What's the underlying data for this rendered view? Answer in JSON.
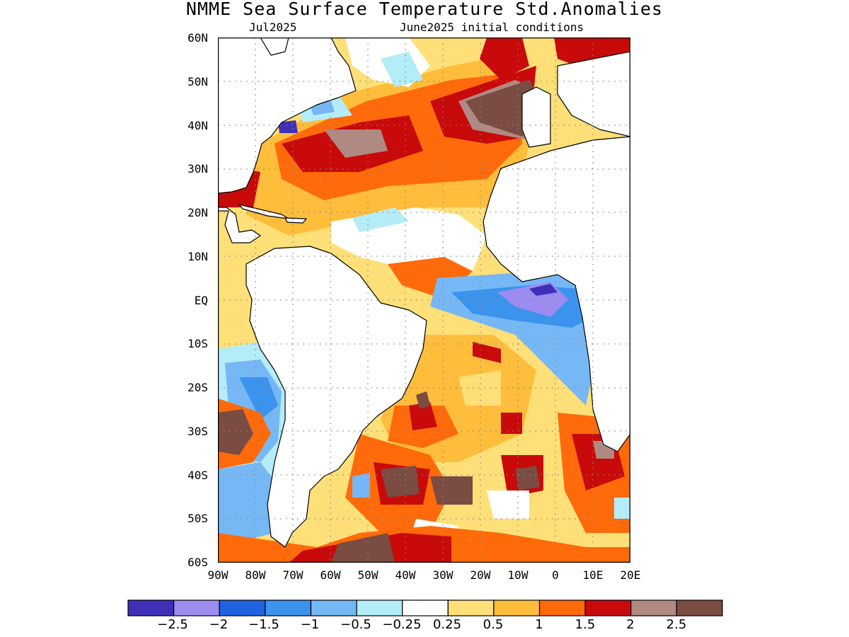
{
  "title": "NMME Sea Surface Temperature Std.Anomalies",
  "subtitle_left": "Jul2025",
  "subtitle_right": "June2025 initial conditions",
  "lat_labels": [
    "60N",
    "50N",
    "40N",
    "30N",
    "20N",
    "10N",
    "EQ",
    "10S",
    "20S",
    "30S",
    "40S",
    "50S",
    "60S"
  ],
  "lon_labels": [
    "90W",
    "80W",
    "70W",
    "60W",
    "50W",
    "40W",
    "30W",
    "20W",
    "10W",
    "0",
    "10E",
    "20E"
  ],
  "colorbar": {
    "colors": [
      "#3f2fb8",
      "#9d8cf0",
      "#1f63e0",
      "#3b93ee",
      "#76b8f5",
      "#b4ecf7",
      "#ffffff",
      "#ffe078",
      "#ffbd3c",
      "#ff6a0a",
      "#c80a0a",
      "#b08a82",
      "#7a4c42"
    ],
    "labels": [
      "−2.5",
      "−2",
      "−1.5",
      "−1",
      "−0.5",
      "−0.25",
      "0.25",
      "0.5",
      "1",
      "1.5",
      "2",
      "2.5"
    ]
  }
}
